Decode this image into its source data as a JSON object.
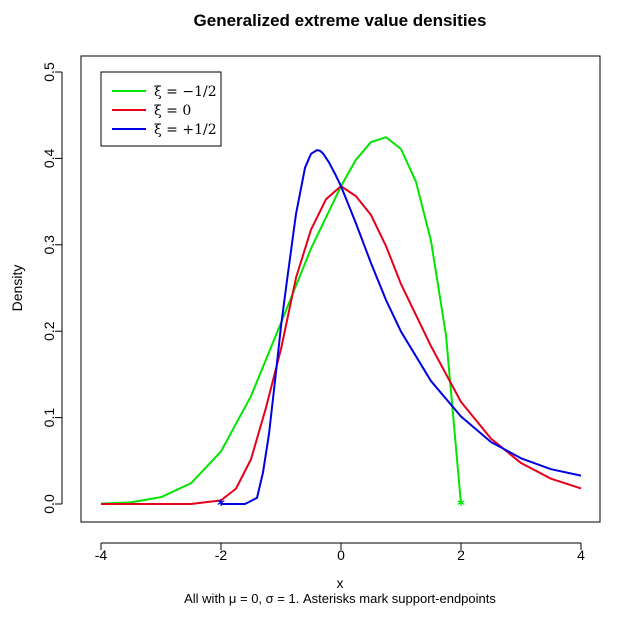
{
  "chart_data": {
    "type": "line",
    "title": "Generalized extreme value densities",
    "xlabel": "x",
    "ylabel": "Density",
    "caption": "All with μ = 0, σ = 1. Asterisks mark support-endpoints",
    "xlim": [
      -4,
      4
    ],
    "ylim": [
      0,
      0.5
    ],
    "x_ticks": [
      -4,
      -2,
      0,
      2,
      4
    ],
    "x_tick_labels": [
      "-4",
      "-2",
      "0",
      "2",
      "4"
    ],
    "y_ticks": [
      0.0,
      0.1,
      0.2,
      0.3,
      0.4,
      0.5
    ],
    "y_tick_labels": [
      "0.0",
      "0.1",
      "0.2",
      "0.3",
      "0.4",
      "0.5"
    ],
    "grid": false,
    "legend_position": "top-left",
    "series": [
      {
        "name": "ξ = −1/2",
        "color": "#00e600",
        "x": [
          -4.0,
          -3.5,
          -3.0,
          -2.5,
          -2.0,
          -1.5,
          -1.0,
          -0.5,
          0.0,
          0.25,
          0.5,
          0.75,
          1.0,
          1.25,
          1.5,
          1.75,
          2.0
        ],
        "y": [
          0.0004,
          0.0019,
          0.0079,
          0.024,
          0.0609,
          0.1248,
          0.2096,
          0.2957,
          0.3679,
          0.3986,
          0.4189,
          0.4245,
          0.4109,
          0.3729,
          0.3045,
          0.1953,
          0.0
        ],
        "endpoint": {
          "x": 2.0,
          "y": 0.0
        }
      },
      {
        "name": "ξ = 0",
        "color": "#e6001a",
        "x": [
          -4.0,
          -3.0,
          -2.5,
          -2.0,
          -1.75,
          -1.5,
          -1.25,
          -1.0,
          -0.75,
          -0.5,
          -0.25,
          0.0,
          0.25,
          0.5,
          0.75,
          1.0,
          1.5,
          2.0,
          2.5,
          3.0,
          3.5,
          4.0
        ],
        "y": [
          0.0,
          0.0,
          0.0,
          0.0042,
          0.0178,
          0.0518,
          0.1115,
          0.1794,
          0.2618,
          0.3175,
          0.3527,
          0.3679,
          0.3562,
          0.3345,
          0.2985,
          0.2546,
          0.1827,
          0.1182,
          0.0757,
          0.0474,
          0.0293,
          0.018
        ]
      },
      {
        "name": "ξ = +1/2",
        "color": "#0000e6",
        "x": [
          -2.0,
          -1.6,
          -1.4,
          -1.3,
          -1.2,
          -1.1,
          -1.0,
          -0.9,
          -0.75,
          -0.6,
          -0.5,
          -0.4,
          -0.35,
          -0.3,
          -0.2,
          -0.1,
          0.0,
          0.25,
          0.5,
          0.75,
          1.0,
          1.5,
          2.0,
          2.5,
          3.0,
          3.5,
          4.0
        ],
        "y": [
          0.0,
          0.0,
          0.0071,
          0.0365,
          0.0811,
          0.1423,
          0.2057,
          0.2588,
          0.3356,
          0.3891,
          0.4053,
          0.4096,
          0.4089,
          0.4058,
          0.3953,
          0.3821,
          0.3679,
          0.3247,
          0.2788,
          0.2361,
          0.1996,
          0.1423,
          0.1013,
          0.0718,
          0.0529,
          0.0403,
          0.0328
        ],
        "endpoint": {
          "x": -2.0,
          "y": 0.0
        }
      }
    ]
  }
}
